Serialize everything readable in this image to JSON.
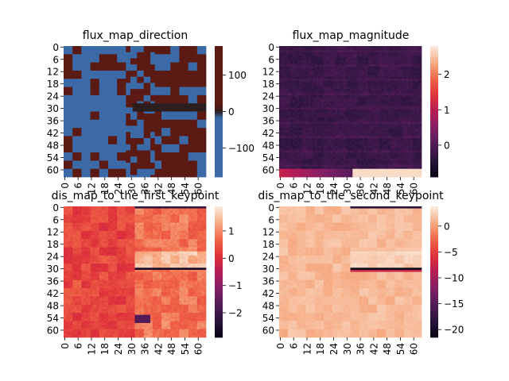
{
  "chart_data": [
    {
      "type": "heatmap",
      "title": "flux_map_direction",
      "rows": 64,
      "cols": 64,
      "xticklabels": [
        "0",
        "6",
        "12",
        "18",
        "24",
        "30",
        "36",
        "42",
        "48",
        "54",
        "60"
      ],
      "yticklabels": [
        "0",
        "6",
        "12",
        "18",
        "24",
        "30",
        "36",
        "42",
        "48",
        "54",
        "60"
      ],
      "colorbar": {
        "ticks": [
          -100,
          0,
          100
        ],
        "ticklabels": [
          "−100",
          "0",
          "100"
        ],
        "range": [
          -180,
          180
        ]
      },
      "colormap": "diverging blue-dark-red",
      "colors": {
        "low": "#3b6aa7",
        "mid": "#2a1e1e",
        "high": "#5b1a13"
      }
    },
    {
      "type": "heatmap",
      "title": "flux_map_magnitude",
      "rows": 64,
      "cols": 64,
      "xticklabels": [
        "0",
        "6",
        "12",
        "18",
        "24",
        "30",
        "36",
        "42",
        "48",
        "54",
        "60"
      ],
      "yticklabels": [
        "0",
        "6",
        "12",
        "18",
        "24",
        "30",
        "36",
        "42",
        "48",
        "54",
        "60"
      ],
      "colorbar": {
        "ticks": [
          0,
          1,
          2
        ],
        "ticklabels": [
          "0",
          "1",
          "2"
        ],
        "range": [
          -0.9,
          2.8
        ]
      },
      "colormap": "rocket"
    },
    {
      "type": "heatmap",
      "title": "dis_map_to_the_first_keypoint",
      "rows": 64,
      "cols": 64,
      "xticklabels": [
        "0",
        "6",
        "12",
        "18",
        "24",
        "30",
        "36",
        "42",
        "48",
        "54",
        "60"
      ],
      "yticklabels": [
        "0",
        "6",
        "12",
        "18",
        "24",
        "30",
        "36",
        "42",
        "48",
        "54",
        "60"
      ],
      "colorbar": {
        "ticks": [
          -2,
          -1,
          0,
          1
        ],
        "ticklabels": [
          "−2",
          "−1",
          "0",
          "1"
        ],
        "range": [
          -2.9,
          1.9
        ]
      },
      "colormap": "rocket"
    },
    {
      "type": "heatmap",
      "title": "dis_map_to_the_second_keypoint",
      "rows": 64,
      "cols": 64,
      "xticklabels": [
        "0",
        "6",
        "12",
        "18",
        "24",
        "30",
        "36",
        "42",
        "48",
        "54",
        "60"
      ],
      "yticklabels": [
        "0",
        "6",
        "12",
        "18",
        "24",
        "30",
        "36",
        "42",
        "48",
        "54",
        "60"
      ],
      "colorbar": {
        "ticks": [
          -20,
          -15,
          -10,
          -5,
          0
        ],
        "ticklabels": [
          "−20",
          "−15",
          "−10",
          "−5",
          "0"
        ],
        "range": [
          -21.5,
          3.8
        ]
      },
      "colormap": "rocket"
    }
  ]
}
